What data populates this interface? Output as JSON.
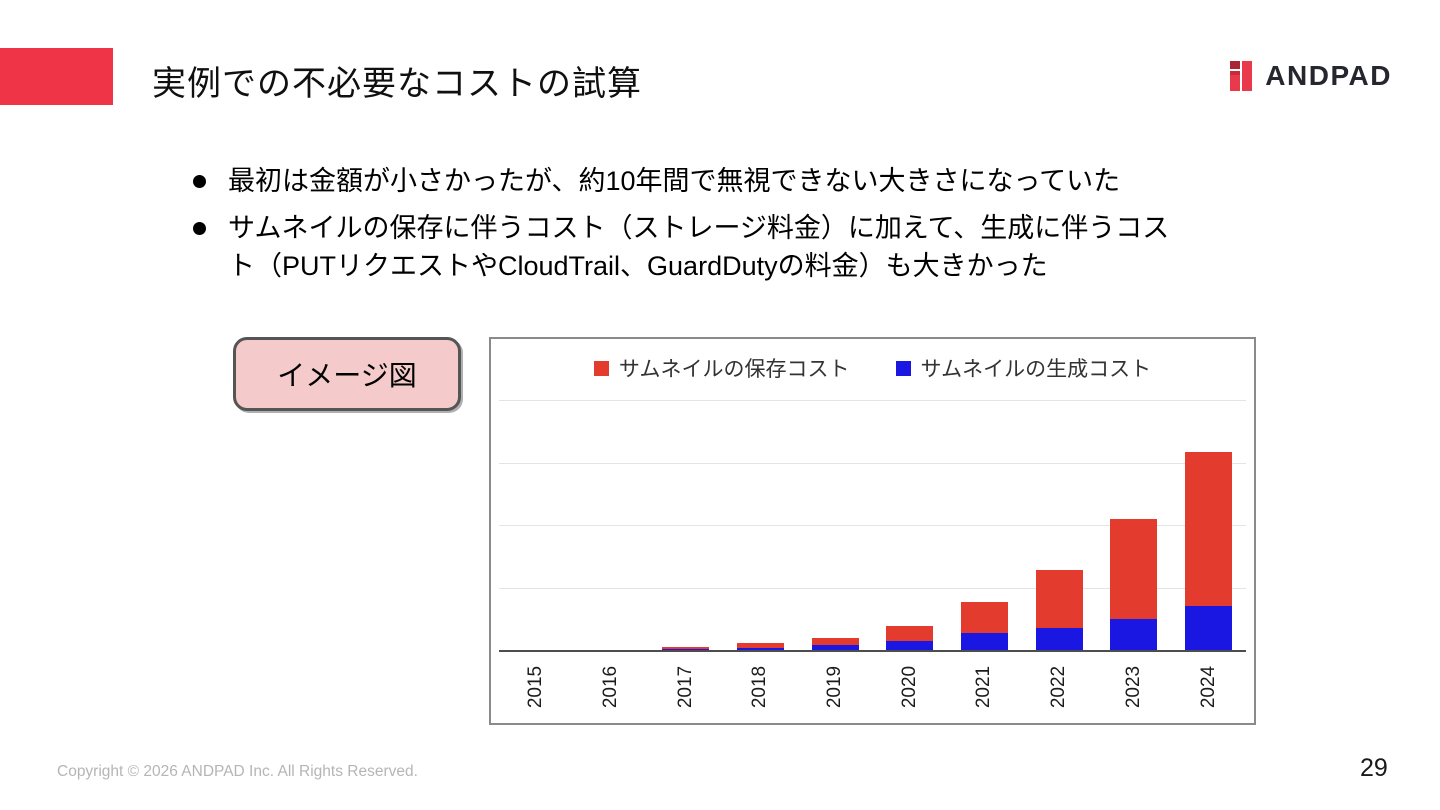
{
  "slide": {
    "title": "実例での不必要なコストの試算",
    "page_number": "29",
    "copyright": "Copyright © 2026 ANDPAD Inc. All Rights Reserved.",
    "accent_color": "#ee3446"
  },
  "logo": {
    "text": "ANDPAD",
    "mark_red": "#e83a4b",
    "mark_dark_red": "#aa2533"
  },
  "bullets": [
    {
      "lines": [
        "最初は金額が小さかったが、約10年間で無視できない大きさになっていた"
      ]
    },
    {
      "lines": [
        "サムネイルの保存に伴うコスト（ストレージ料金）に加えて、生成に伴うコス",
        "ト（PUTリクエストやCloudTrail、GuardDutyの料金）も大きかった"
      ]
    }
  ],
  "image_label": {
    "text": "イメージ図",
    "bg": "#f5caca"
  },
  "chart_data": {
    "type": "bar",
    "stacked": true,
    "title": "",
    "xlabel": "",
    "ylabel": "",
    "categories": [
      "2015",
      "2016",
      "2017",
      "2018",
      "2019",
      "2020",
      "2021",
      "2022",
      "2023",
      "2024"
    ],
    "series": [
      {
        "name": "サムネイルの保存コスト",
        "color": "#e33b2e",
        "values": [
          0,
          0,
          0.04,
          0.08,
          0.11,
          0.23,
          0.5,
          0.93,
          1.6,
          2.46
        ]
      },
      {
        "name": "サムネイルの生成コスト",
        "color": "#1b17e3",
        "values": [
          0,
          0,
          0.01,
          0.03,
          0.08,
          0.15,
          0.27,
          0.35,
          0.5,
          0.7
        ]
      }
    ],
    "ylim": [
      0,
      4
    ],
    "y_ticks_labeled": false,
    "grid": true,
    "legend_position": "top",
    "x_tick_rotation": -90
  }
}
